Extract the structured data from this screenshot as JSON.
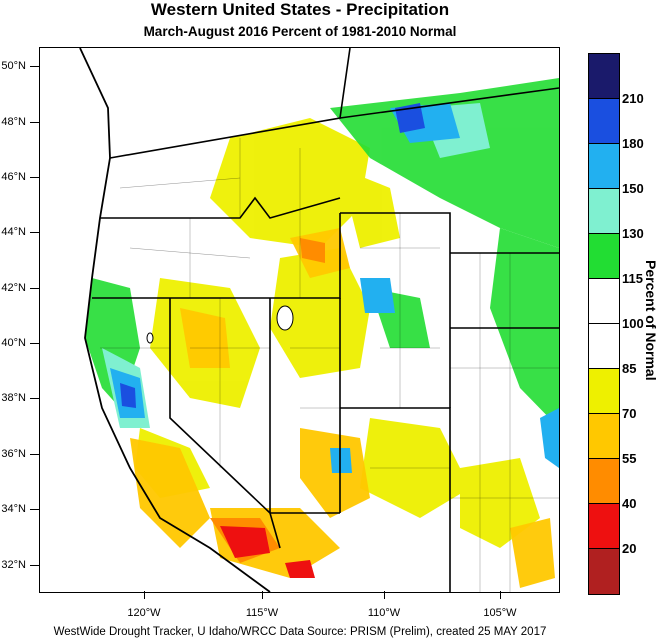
{
  "title": "Western United States - Precipitation",
  "subtitle": "March-August 2016  Percent of 1981-2010 Normal",
  "latitude_labels": [
    "50°N",
    "48°N",
    "46°N",
    "44°N",
    "42°N",
    "40°N",
    "38°N",
    "36°N",
    "34°N",
    "32°N"
  ],
  "longitude_labels": [
    "120°W",
    "115°W",
    "110°W",
    "105°W"
  ],
  "legend": {
    "title": "Percent of Normal",
    "tick_labels": [
      "210",
      "180",
      "150",
      "130",
      "115",
      "100",
      "85",
      "70",
      "55",
      "40",
      "20"
    ],
    "colors": [
      "#1a1a6b",
      "#1a4fe0",
      "#22b0f0",
      "#7ff0d0",
      "#22dd33",
      "#ffffff",
      "#ffffff",
      "#eef000",
      "#ffc800",
      "#ff8c00",
      "#ee1010",
      "#b02020"
    ]
  },
  "footer": "WestWide Drought Tracker, U Idaho/WRCC Data Source: PRISM (Prelim), created 25 MAY 2017"
}
